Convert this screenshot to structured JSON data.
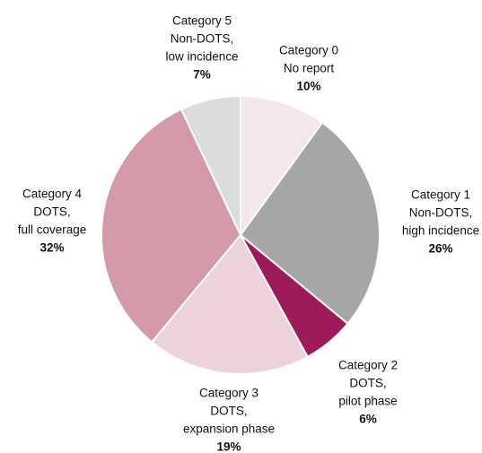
{
  "chart_data": {
    "type": "pie",
    "categories": [
      [
        "Category 0",
        "No report"
      ],
      [
        "Category 1",
        "Non-DOTS,",
        "high incidence"
      ],
      [
        "Category 2",
        "DOTS,",
        "pilot phase"
      ],
      [
        "Category 3",
        "DOTS,",
        "expansion phase"
      ],
      [
        "Category 4",
        "DOTS,",
        "full coverage"
      ],
      [
        "Category 5",
        "Non-DOTS,",
        "low incidence"
      ]
    ],
    "values": [
      10,
      26,
      6,
      19,
      32,
      7
    ],
    "value_labels": [
      "10%",
      "26%",
      "6%",
      "19%",
      "32%",
      "7%"
    ],
    "colors": [
      "#f5e6ea",
      "#a6a6a6",
      "#9e1b5a",
      "#ecd3da",
      "#d49aaa",
      "#dcdcdc"
    ]
  }
}
